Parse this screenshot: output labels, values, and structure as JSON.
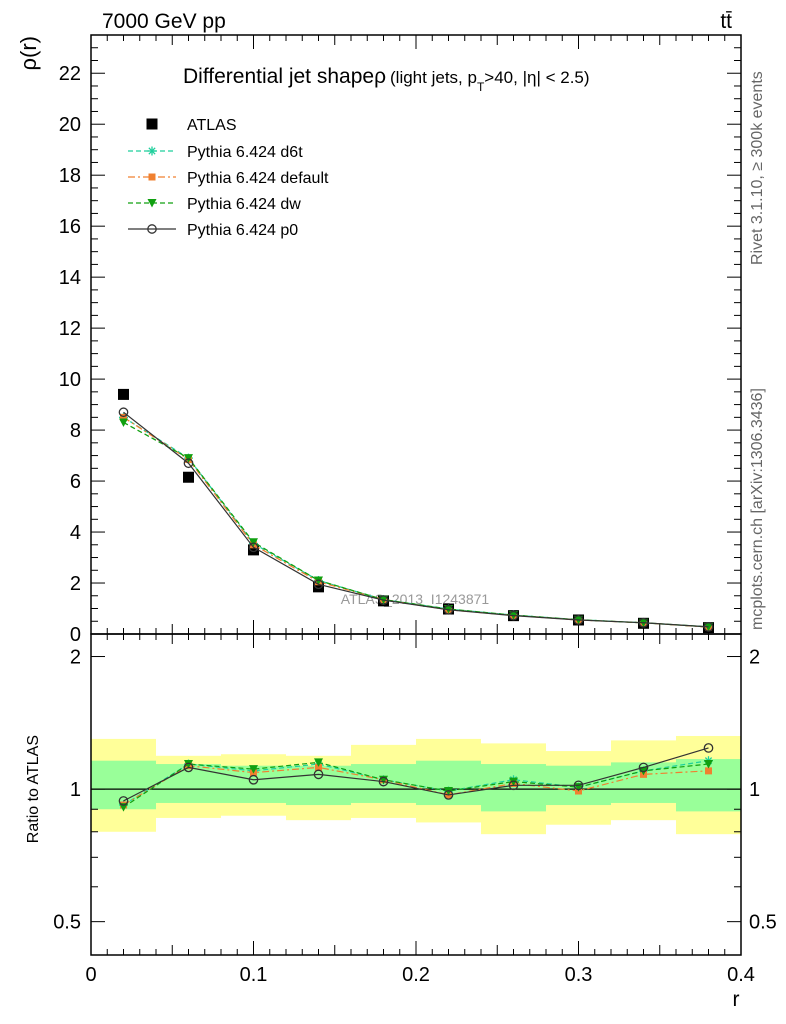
{
  "header": {
    "energy_label": "7000 GeV pp",
    "process_label": "tt̄"
  },
  "side_labels": {
    "rivet": "Rivet 3.1.10, ≥ 300k events",
    "mcplots": "mcplots.cern.ch [arXiv:1306.3436]"
  },
  "watermark": "ATLAS_2013_I1243871",
  "colors": {
    "atlas": "#000000",
    "d6t": "#1fcf9c",
    "default": "#f08030",
    "dw": "#10a010",
    "p0": "#333333",
    "band_outer": "#ffff99",
    "band_inner": "#99ff99"
  },
  "chart_data": [
    {
      "type": "scatter",
      "title": "Differential jet shape ρ (light jets, p_T>40, |η| < 2.5)",
      "title_main": "Differential jet shape",
      "title_rho": "ρ",
      "title_paren": "(light jets, p",
      "title_sub": "T",
      "title_tail": ">40, |η| < 2.5)",
      "ylabel": "ρ(r)",
      "xlabel": "r",
      "xlim": [
        0,
        0.4
      ],
      "ylim": [
        0,
        23.5
      ],
      "yticks": [
        "0",
        "2",
        "4",
        "6",
        "8",
        "10",
        "12",
        "14",
        "16",
        "18",
        "20",
        "22"
      ],
      "legend_position": "top-left",
      "x": [
        0.02,
        0.06,
        0.1,
        0.14,
        0.18,
        0.22,
        0.26,
        0.3,
        0.34,
        0.38
      ],
      "series": [
        {
          "name": "ATLAS",
          "key": "atlas",
          "marker": "square",
          "values": [
            9.4,
            6.15,
            3.3,
            1.85,
            1.3,
            0.98,
            0.72,
            0.55,
            0.42,
            0.25
          ]
        },
        {
          "name": "Pythia 6.424 d6t",
          "key": "d6t",
          "marker": "star",
          "values": [
            8.5,
            6.9,
            3.55,
            2.1,
            1.35,
            0.98,
            0.74,
            0.56,
            0.44,
            0.28
          ]
        },
        {
          "name": "Pythia 6.424 default",
          "key": "default",
          "marker": "square-small",
          "values": [
            8.5,
            6.85,
            3.5,
            2.05,
            1.35,
            0.95,
            0.73,
            0.55,
            0.44,
            0.27
          ]
        },
        {
          "name": "Pythia 6.424 dw",
          "key": "dw",
          "marker": "triangle-down",
          "values": [
            8.3,
            6.9,
            3.6,
            2.1,
            1.35,
            0.98,
            0.74,
            0.56,
            0.44,
            0.28
          ]
        },
        {
          "name": "Pythia 6.424 p0",
          "key": "p0",
          "marker": "circle-open",
          "values": [
            8.7,
            6.7,
            3.4,
            1.95,
            1.33,
            0.95,
            0.72,
            0.55,
            0.44,
            0.28
          ]
        }
      ]
    },
    {
      "type": "scatter",
      "ylabel": "Ratio to ATLAS",
      "xlabel": "r",
      "xlim": [
        0,
        0.4
      ],
      "ylim": [
        0.42,
        2.25
      ],
      "yscale": "log",
      "yticks": [
        "0.5",
        "1",
        "2"
      ],
      "xticks": [
        "0",
        "0.1",
        "0.2",
        "0.3",
        "0.4"
      ],
      "bins": [
        [
          0.0,
          0.04
        ],
        [
          0.04,
          0.08
        ],
        [
          0.08,
          0.12
        ],
        [
          0.12,
          0.16
        ],
        [
          0.16,
          0.2
        ],
        [
          0.2,
          0.24
        ],
        [
          0.24,
          0.28
        ],
        [
          0.28,
          0.32
        ],
        [
          0.32,
          0.36
        ],
        [
          0.36,
          0.4
        ]
      ],
      "band_outer": [
        [
          0.8,
          1.3
        ],
        [
          0.86,
          1.19
        ],
        [
          0.87,
          1.2
        ],
        [
          0.85,
          1.19
        ],
        [
          0.86,
          1.26
        ],
        [
          0.84,
          1.3
        ],
        [
          0.79,
          1.27
        ],
        [
          0.83,
          1.22
        ],
        [
          0.85,
          1.29
        ],
        [
          0.79,
          1.32
        ]
      ],
      "band_inner": [
        [
          0.9,
          1.16
        ],
        [
          0.93,
          1.14
        ],
        [
          0.93,
          1.13
        ],
        [
          0.92,
          1.13
        ],
        [
          0.93,
          1.14
        ],
        [
          0.92,
          1.16
        ],
        [
          0.89,
          1.14
        ],
        [
          0.92,
          1.13
        ],
        [
          0.93,
          1.15
        ],
        [
          0.89,
          1.17
        ]
      ],
      "x": [
        0.02,
        0.06,
        0.1,
        0.14,
        0.18,
        0.22,
        0.26,
        0.3,
        0.34,
        0.38
      ],
      "series": [
        {
          "key": "d6t",
          "marker": "star",
          "values": [
            0.92,
            1.14,
            1.1,
            1.14,
            1.05,
            0.99,
            1.05,
            1.01,
            1.1,
            1.16
          ]
        },
        {
          "key": "default",
          "marker": "square-small",
          "values": [
            0.92,
            1.13,
            1.09,
            1.12,
            1.05,
            0.97,
            1.03,
            0.99,
            1.08,
            1.1
          ]
        },
        {
          "key": "dw",
          "marker": "triangle-down",
          "values": [
            0.91,
            1.14,
            1.11,
            1.15,
            1.05,
            0.99,
            1.04,
            1.01,
            1.1,
            1.14
          ]
        },
        {
          "key": "p0",
          "marker": "circle-open",
          "values": [
            0.94,
            1.12,
            1.05,
            1.08,
            1.04,
            0.97,
            1.02,
            1.02,
            1.12,
            1.24
          ]
        }
      ]
    }
  ]
}
